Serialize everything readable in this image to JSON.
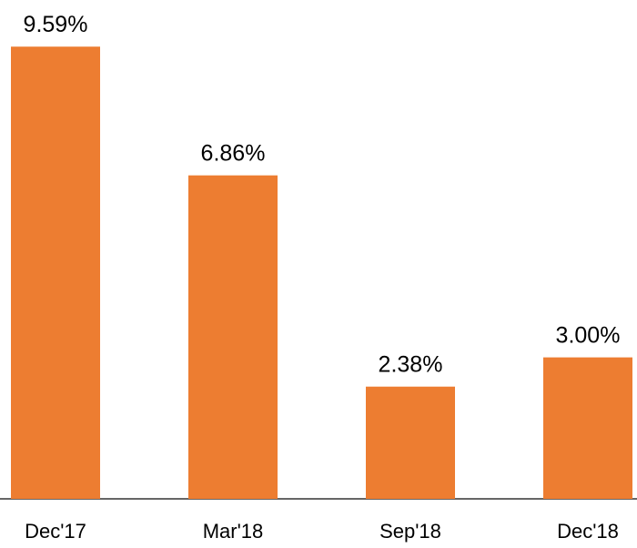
{
  "chart_data": {
    "type": "bar",
    "categories": [
      "Dec'17",
      "Mar'18",
      "Sep'18",
      "Dec'18"
    ],
    "values": [
      9.59,
      6.86,
      2.38,
      3.0
    ],
    "value_labels": [
      "9.59%",
      "6.86%",
      "2.38%",
      "3.00%"
    ],
    "color": "#ed7d31"
  }
}
